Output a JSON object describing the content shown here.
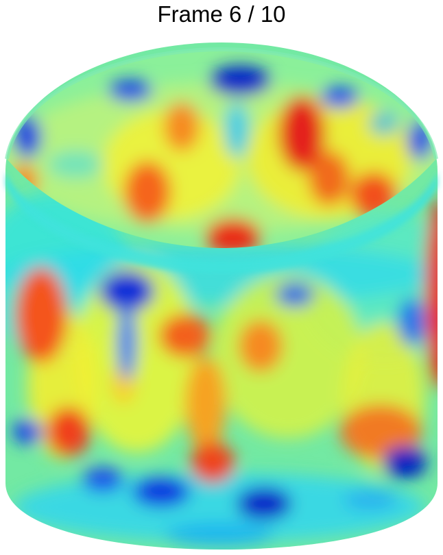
{
  "figure": {
    "title": "Frame 6 / 10"
  },
  "colors": {
    "background": "#ffffff",
    "colormap": "jet",
    "base_field": "#6fe8a2"
  }
}
